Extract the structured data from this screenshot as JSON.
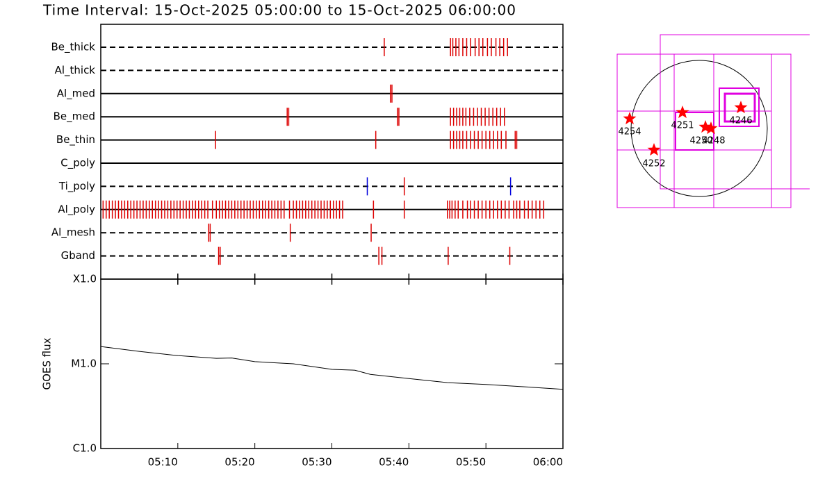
{
  "chart_data": [
    {
      "type": "timeline",
      "title": "Time Interval: 15-Oct-2025 05:00:00 to 15-Oct-2025 06:00:00",
      "xlim": [
        0,
        60
      ],
      "rows": [
        {
          "name": "Be_thick",
          "line": "dashed",
          "series": [
            {
              "color": "#dd0000",
              "values": [
                36.8,
                45.4,
                45.7,
                46.1,
                46.5,
                47.0,
                47.5,
                48.0,
                48.6,
                49.1,
                49.6,
                50.2,
                50.7,
                51.3,
                51.8,
                52.3,
                52.8
              ]
            }
          ]
        },
        {
          "name": "Al_thick",
          "line": "dashed",
          "series": []
        },
        {
          "name": "Al_med",
          "line": "solid",
          "series": [
            {
              "color": "#dd0000",
              "values": [
                37.6,
                37.8
              ]
            }
          ]
        },
        {
          "name": "Be_med",
          "line": "solid",
          "series": [
            {
              "color": "#dd0000",
              "values": [
                24.2,
                24.4,
                38.5,
                38.7,
                45.4,
                45.8,
                46.2,
                46.6,
                47.0,
                47.4,
                47.9,
                48.4,
                48.9,
                49.4,
                49.9,
                50.4,
                50.9,
                51.4,
                51.9,
                52.4
              ]
            }
          ]
        },
        {
          "name": "Be_thin",
          "line": "solid",
          "series": [
            {
              "color": "#dd0000",
              "values": [
                14.9,
                35.7,
                45.4,
                45.8,
                46.2,
                46.6,
                47.0,
                47.5,
                48.0,
                48.5,
                49.0,
                49.5,
                50.0,
                50.5,
                51.0,
                51.5,
                52.0,
                52.6,
                53.8,
                54.0
              ]
            }
          ]
        },
        {
          "name": "C_poly",
          "line": "solid",
          "series": []
        },
        {
          "name": "Ti_poly",
          "line": "dashed",
          "series": [
            {
              "color": "#0000dd",
              "values": [
                34.6,
                53.2
              ]
            },
            {
              "color": "#dd0000",
              "values": [
                39.4
              ]
            }
          ]
        },
        {
          "name": "Al_poly",
          "line": "solid",
          "series": [
            {
              "color": "#dd0000",
              "values": [
                0.3,
                0.7,
                1.1,
                1.5,
                1.9,
                2.3,
                2.7,
                3.1,
                3.5,
                3.9,
                4.3,
                4.7,
                5.1,
                5.5,
                5.9,
                6.3,
                6.7,
                7.1,
                7.5,
                7.9,
                8.3,
                8.7,
                9.1,
                9.5,
                9.9,
                10.3,
                10.7,
                11.1,
                11.5,
                11.9,
                12.3,
                12.7,
                13.1,
                13.5,
                13.9,
                14.5,
                15.0,
                15.4,
                15.8,
                16.2,
                16.6,
                17.0,
                17.4,
                17.8,
                18.2,
                18.6,
                19.0,
                19.4,
                19.8,
                20.2,
                20.6,
                21.0,
                21.4,
                21.8,
                22.2,
                22.6,
                23.0,
                23.4,
                23.8,
                24.5,
                25.0,
                25.4,
                25.8,
                26.2,
                26.6,
                27.0,
                27.4,
                27.8,
                28.2,
                28.6,
                29.0,
                29.4,
                29.8,
                30.2,
                30.6,
                31.0,
                31.4,
                35.4,
                39.4,
                45.0,
                45.3,
                45.6,
                46.0,
                46.4,
                47.0,
                47.6,
                48.0,
                48.5,
                49.0,
                49.5,
                50.0,
                50.5,
                51.0,
                51.5,
                52.0,
                52.5,
                53.0,
                53.6,
                54.0,
                54.4,
                55.0,
                55.5,
                56.0,
                56.5,
                57.0,
                57.5
              ]
            }
          ]
        },
        {
          "name": "Al_mesh",
          "line": "dashed",
          "series": [
            {
              "color": "#dd0000",
              "values": [
                14.0,
                14.2,
                24.6,
                35.1
              ]
            }
          ]
        },
        {
          "name": "Gband",
          "line": "dashed",
          "series": [
            {
              "color": "#dd0000",
              "values": [
                15.3,
                15.5,
                36.1,
                36.5,
                45.1,
                53.1
              ]
            }
          ]
        }
      ]
    },
    {
      "type": "line",
      "ylabel": "GOES flux",
      "log": true,
      "xlim": [
        0,
        60
      ],
      "xticks": [
        {
          "value": 10,
          "label": "05:10"
        },
        {
          "value": 20,
          "label": "05:20"
        },
        {
          "value": 30,
          "label": "05:30"
        },
        {
          "value": 40,
          "label": "05:40"
        },
        {
          "value": 50,
          "label": "05:50"
        },
        {
          "value": 60,
          "label": "06:00"
        }
      ],
      "ylim": [
        1e-06,
        0.0001
      ],
      "yticks": [
        {
          "value": 1e-06,
          "label": "C1.0"
        },
        {
          "value": 1e-05,
          "label": "M1.0"
        },
        {
          "value": 0.0001,
          "label": "X1.0"
        }
      ],
      "x": [
        0,
        5,
        10,
        15,
        17,
        20,
        25,
        30,
        33,
        35,
        40,
        45,
        50,
        55,
        60
      ],
      "series": [
        {
          "color": "#000000",
          "values": [
            1.6e-05,
            1.4e-05,
            1.25e-05,
            1.16e-05,
            1.17e-05,
            1.06e-05,
            1e-05,
            8.6e-06,
            8.4e-06,
            7.5e-06,
            6.7e-06,
            6e-06,
            5.7e-06,
            5.35e-06,
            5e-06
          ]
        }
      ]
    }
  ],
  "context_map": {
    "regions": [
      {
        "label": "4254"
      },
      {
        "label": "4251"
      },
      {
        "label": "4250"
      },
      {
        "label": "4248"
      },
      {
        "label": "4246"
      },
      {
        "label": "4252"
      }
    ]
  }
}
